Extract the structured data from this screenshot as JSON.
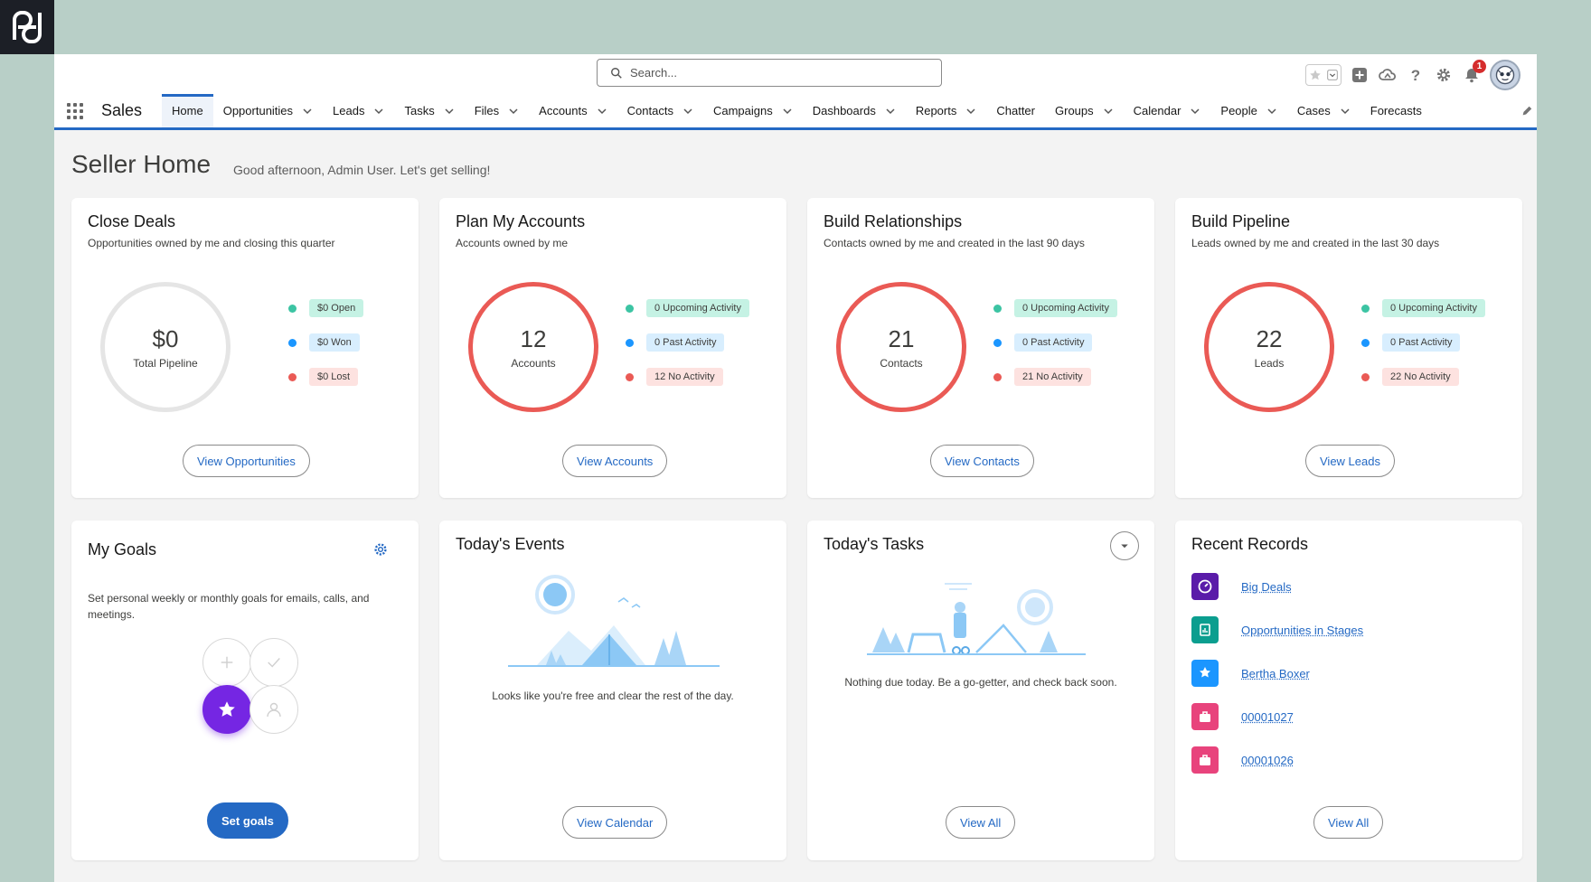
{
  "search": {
    "placeholder": "Search..."
  },
  "notifications": {
    "count": "1"
  },
  "app": {
    "name": "Sales"
  },
  "nav": [
    {
      "label": "Home",
      "active": true,
      "chevron": false
    },
    {
      "label": "Opportunities",
      "chevron": true
    },
    {
      "label": "Leads",
      "chevron": true
    },
    {
      "label": "Tasks",
      "chevron": true
    },
    {
      "label": "Files",
      "chevron": true
    },
    {
      "label": "Accounts",
      "chevron": true
    },
    {
      "label": "Contacts",
      "chevron": true
    },
    {
      "label": "Campaigns",
      "chevron": true
    },
    {
      "label": "Dashboards",
      "chevron": true
    },
    {
      "label": "Reports",
      "chevron": true
    },
    {
      "label": "Chatter",
      "chevron": false
    },
    {
      "label": "Groups",
      "chevron": true
    },
    {
      "label": "Calendar",
      "chevron": true
    },
    {
      "label": "People",
      "chevron": true
    },
    {
      "label": "Cases",
      "chevron": true
    },
    {
      "label": "Forecasts",
      "chevron": false
    }
  ],
  "page": {
    "title": "Seller Home",
    "greeting": "Good afternoon, Admin User. Let's get selling!"
  },
  "cards": {
    "close_deals": {
      "title": "Close Deals",
      "subtitle": "Opportunities owned by me and closing this quarter",
      "value": "$0",
      "value_label": "Total Pipeline",
      "legend": [
        "$0 Open",
        "$0 Won",
        "$0 Lost"
      ],
      "button": "View Opportunities"
    },
    "plan_accounts": {
      "title": "Plan My Accounts",
      "subtitle": "Accounts owned by me",
      "value": "12",
      "value_label": "Accounts",
      "legend": [
        "0 Upcoming Activity",
        "0 Past Activity",
        "12 No Activity"
      ],
      "button": "View Accounts"
    },
    "build_relationships": {
      "title": "Build Relationships",
      "subtitle": "Contacts owned by me and created in the last 90 days",
      "value": "21",
      "value_label": "Contacts",
      "legend": [
        "0 Upcoming Activity",
        "0 Past Activity",
        "21 No Activity"
      ],
      "button": "View Contacts"
    },
    "build_pipeline": {
      "title": "Build Pipeline",
      "subtitle": "Leads owned by me and created in the last 30 days",
      "value": "22",
      "value_label": "Leads",
      "legend": [
        "0 Upcoming Activity",
        "0 Past Activity",
        "22 No Activity"
      ],
      "button": "View Leads"
    },
    "my_goals": {
      "title": "My Goals",
      "text": "Set personal weekly or monthly goals for emails, calls, and meetings.",
      "button": "Set goals"
    },
    "events": {
      "title": "Today's Events",
      "message": "Looks like you're free and clear the rest of the day.",
      "button": "View Calendar"
    },
    "tasks": {
      "title": "Today's Tasks",
      "message": "Nothing due today. Be a go-getter, and check back soon.",
      "button": "View All"
    },
    "recent": {
      "title": "Recent Records",
      "items": [
        {
          "label": "Big Deals",
          "icon": "dashboard-icon",
          "color": "#5a1ba9"
        },
        {
          "label": "Opportunities in Stages",
          "icon": "report-icon",
          "color": "#0b9e8f"
        },
        {
          "label": "Bertha Boxer",
          "icon": "lead-icon",
          "color": "#1b96ff"
        },
        {
          "label": "00001027",
          "icon": "case-icon",
          "color": "#e8437c"
        },
        {
          "label": "00001026",
          "icon": "case-icon",
          "color": "#e8437c"
        }
      ],
      "button": "View All"
    }
  },
  "colors": {
    "accent": "#2469c4",
    "open": "#3cc4a3",
    "won": "#1b96ff",
    "lost": "#ea5a55",
    "pill_green": "#c5f2e4",
    "pill_blue": "#d8eefe",
    "pill_red": "#fde2e0"
  }
}
